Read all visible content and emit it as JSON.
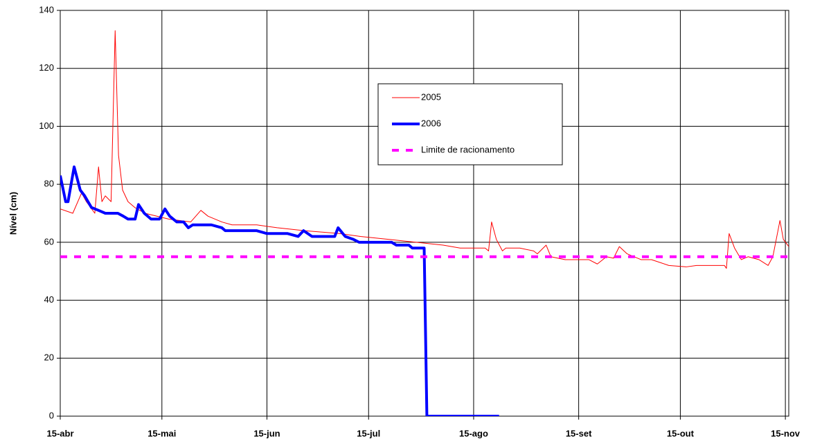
{
  "chart_data": {
    "type": "line",
    "y_label": "Nível (cm)",
    "xlim": [
      0,
      215
    ],
    "xticks": [
      {
        "value": 0,
        "label": "15-abr"
      },
      {
        "value": 30,
        "label": "15-mai"
      },
      {
        "value": 61,
        "label": "15-jun"
      },
      {
        "value": 91,
        "label": "15-jul"
      },
      {
        "value": 122,
        "label": "15-ago"
      },
      {
        "value": 153,
        "label": "15-set"
      },
      {
        "value": 183,
        "label": "15-out"
      },
      {
        "value": 214,
        "label": "15-nov"
      }
    ],
    "ylim": [
      0,
      140
    ],
    "yticks": [
      0,
      20,
      40,
      60,
      80,
      100,
      120,
      140
    ],
    "grid": true,
    "legend": "upper center",
    "series": [
      {
        "name": "2005",
        "color": "#ff0000",
        "x": [
          0,
          3.7,
          6.3,
          7.7,
          10.2,
          11.3,
          12.3,
          13.3,
          15,
          16.2,
          17.2,
          18.4,
          20,
          22,
          25,
          32,
          38.5,
          41.5,
          43.6,
          47.7,
          50.7,
          58,
          64,
          72,
          82.4,
          88.6,
          96.8,
          105,
          113,
          118,
          125.4,
          126.4,
          127.3,
          128.7,
          130.5,
          131.5,
          135.6,
          139.7,
          140.8,
          143.4,
          144.8,
          149,
          156,
          158.5,
          161.2,
          163.3,
          165,
          167.3,
          171.4,
          174.5,
          179.6,
          184.7,
          187.8,
          196,
          196.6,
          197.4,
          199,
          201,
          203,
          206.2,
          208.9,
          210.3,
          212.4,
          213.4,
          215
        ],
        "values": [
          71.5,
          70,
          77,
          74,
          70,
          86,
          74,
          76,
          74,
          133,
          90,
          78,
          74,
          72,
          70,
          68,
          67,
          71,
          69,
          67,
          66,
          66,
          65,
          64,
          63,
          62,
          61,
          60,
          59,
          58,
          58,
          57,
          67,
          61,
          57,
          58,
          58,
          57,
          56,
          59,
          55,
          54,
          54,
          52.5,
          55,
          54.5,
          58.5,
          56,
          54,
          54,
          52,
          51.5,
          52,
          52,
          51,
          63,
          58,
          54,
          55,
          54,
          52,
          55,
          67.5,
          61,
          58.5
        ]
      },
      {
        "name": "2006",
        "color": "#0000ff",
        "x": [
          0,
          1.6,
          2.3,
          4.1,
          5.9,
          7.2,
          9.2,
          11.3,
          13.3,
          17,
          18.6,
          20,
          22.1,
          23.1,
          24.8,
          26.8,
          29.3,
          30.9,
          32.3,
          34.4,
          36.4,
          37.8,
          39.1,
          44.6,
          47.7,
          48.7,
          57.9,
          61,
          67.1,
          70.2,
          71.8,
          74.3,
          81,
          82,
          84.1,
          86.5,
          88.2,
          97.8,
          99.2,
          102.9,
          103.9,
          107.4,
          108.2,
          129.5
        ],
        "values": [
          83,
          74,
          74,
          86,
          78,
          76,
          72,
          71,
          70,
          70,
          69,
          68,
          68,
          73,
          70,
          68,
          68,
          71.5,
          69,
          67,
          67,
          65,
          66,
          66,
          65,
          64,
          64,
          63,
          63,
          62,
          64,
          62,
          62,
          65,
          62,
          61,
          60,
          60,
          59,
          59,
          58,
          58,
          0,
          0
        ]
      },
      {
        "name": "Limite de racionamento",
        "color": "#ff00ff",
        "x": [
          0,
          215
        ],
        "values": [
          55,
          55
        ]
      }
    ]
  }
}
